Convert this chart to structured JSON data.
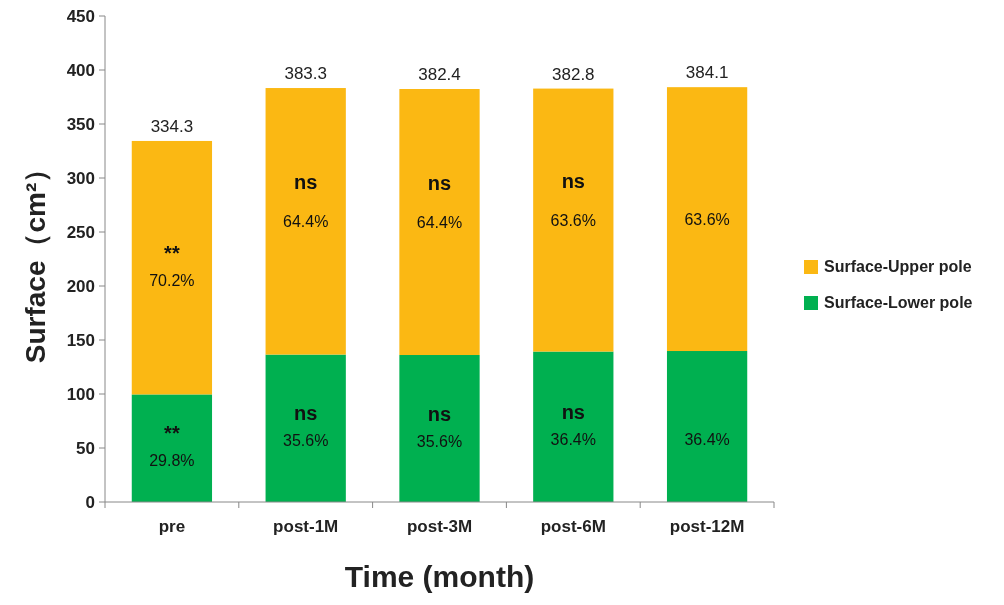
{
  "chart_data": {
    "type": "bar",
    "stacked": true,
    "xlabel": "Time (month)",
    "ylabel": "Surface（cm²）",
    "categories": [
      "pre",
      "post-1M",
      "post-3M",
      "post-6M",
      "post-12M"
    ],
    "series": [
      {
        "name": "Surface-Lower pole",
        "color": "#00b050",
        "values": [
          99.6,
          136.5,
          136.1,
          139.3,
          139.8
        ]
      },
      {
        "name": "Surface-Upper pole",
        "color": "#fbb813",
        "values": [
          234.7,
          246.8,
          246.3,
          243.5,
          244.3
        ]
      }
    ],
    "totals": [
      "334.3",
      "383.3",
      "382.4",
      "382.8",
      "384.1"
    ],
    "annotations": [
      "**",
      "70.2%",
      "**",
      "29.8%",
      "ns",
      "64.4%",
      "ns",
      "35.6%",
      "ns",
      "64.4%",
      "ns",
      "35.6%",
      "ns",
      "63.6%",
      "ns",
      "36.4%",
      "63.6%",
      "36.4%"
    ],
    "ylim": [
      0,
      450
    ],
    "yticks": [
      0,
      50,
      100,
      150,
      200,
      250,
      300,
      350,
      400,
      450
    ],
    "grid": false,
    "legend": "right"
  }
}
